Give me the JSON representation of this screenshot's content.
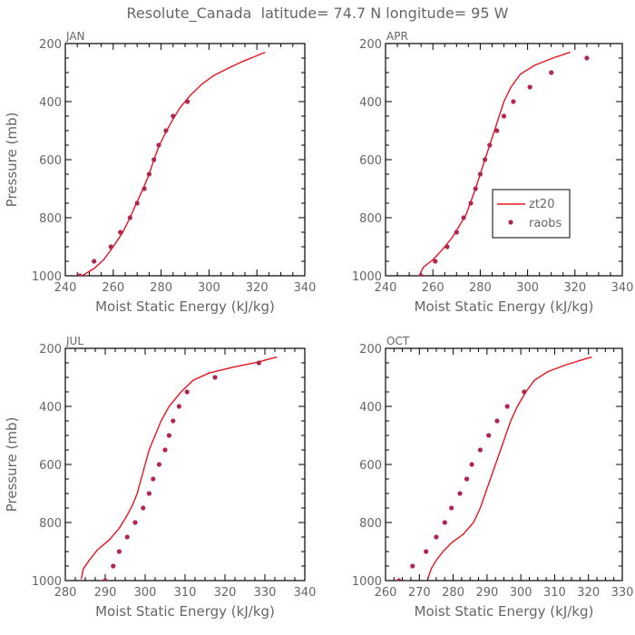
{
  "figure": {
    "title": "Resolute_Canada  latitude= 74.7 N longitude= 95 W",
    "model_color": "#e8141e",
    "obs_color": "#b0264f"
  },
  "chart_data": [
    {
      "type": "line",
      "title": "JAN",
      "xlabel": "Moist Static Energy (kJ/kg)",
      "ylabel": "Pressure (mb)",
      "xlim": [
        240,
        340
      ],
      "ylim": [
        1000,
        200
      ],
      "x_ticks": [
        240,
        260,
        280,
        300,
        320,
        340
      ],
      "y_ticks": [
        200,
        400,
        600,
        800,
        1000
      ],
      "series": [
        {
          "kind": "line",
          "points": [
            [
              244.5,
              1010
            ],
            [
              248,
              995
            ],
            [
              252,
              975
            ],
            [
              256,
              945
            ],
            [
              260,
              900
            ],
            [
              264,
              850
            ],
            [
              267,
              800
            ],
            [
              270,
              745
            ],
            [
              273,
              690
            ],
            [
              275,
              650
            ],
            [
              277,
              600
            ],
            [
              279,
              555
            ],
            [
              282,
              505
            ],
            [
              285,
              460
            ],
            [
              288,
              420
            ],
            [
              292,
              380
            ],
            [
              297,
              340
            ],
            [
              302,
              310
            ],
            [
              308,
              285
            ],
            [
              314,
              262
            ],
            [
              320,
              242
            ],
            [
              323.5,
              230
            ]
          ]
        },
        {
          "kind": "scatter",
          "points": [
            [
              246,
              1000
            ],
            [
              252,
              950
            ],
            [
              259,
              900
            ],
            [
              263,
              850
            ],
            [
              267,
              800
            ],
            [
              270,
              750
            ],
            [
              273,
              700
            ],
            [
              275,
              650
            ],
            [
              277,
              600
            ],
            [
              279,
              550
            ],
            [
              282,
              500
            ],
            [
              285,
              450
            ],
            [
              291,
              400
            ]
          ]
        }
      ]
    },
    {
      "type": "line",
      "title": "APR",
      "xlabel": "Moist Static Energy (kJ/kg)",
      "ylabel": "",
      "xlim": [
        240,
        340
      ],
      "ylim": [
        1000,
        200
      ],
      "x_ticks": [
        240,
        260,
        280,
        300,
        320,
        340
      ],
      "y_ticks": [
        200,
        400,
        600,
        800,
        1000
      ],
      "legend": {
        "position": "center-right",
        "entries": [
          "zt20",
          "raobs"
        ]
      },
      "series": [
        {
          "name": "zt20",
          "kind": "line",
          "points": [
            [
              254.5,
              995
            ],
            [
              256,
              970
            ],
            [
              260,
              945
            ],
            [
              264,
              910
            ],
            [
              268,
              870
            ],
            [
              271,
              830
            ],
            [
              274,
              790
            ],
            [
              276,
              745
            ],
            [
              278,
              700
            ],
            [
              280,
              650
            ],
            [
              282,
              600
            ],
            [
              284,
              550
            ],
            [
              286,
              500
            ],
            [
              288,
              450
            ],
            [
              290,
              400
            ],
            [
              293,
              350
            ],
            [
              297,
              305
            ],
            [
              303,
              275
            ],
            [
              310,
              252
            ],
            [
              318,
              230
            ]
          ]
        },
        {
          "name": "raobs",
          "kind": "scatter",
          "points": [
            [
              255,
              1000
            ],
            [
              261,
              950
            ],
            [
              266,
              900
            ],
            [
              270,
              850
            ],
            [
              273,
              800
            ],
            [
              276,
              750
            ],
            [
              278,
              700
            ],
            [
              280,
              650
            ],
            [
              282,
              600
            ],
            [
              284,
              550
            ],
            [
              287,
              500
            ],
            [
              290,
              450
            ],
            [
              294,
              400
            ],
            [
              301,
              350
            ],
            [
              310,
              300
            ],
            [
              325,
              250
            ]
          ]
        }
      ]
    },
    {
      "type": "line",
      "title": "JUL",
      "xlabel": "Moist Static Energy (kJ/kg)",
      "ylabel": "Pressure (mb)",
      "xlim": [
        280,
        340
      ],
      "ylim": [
        1000,
        200
      ],
      "x_ticks": [
        280,
        290,
        300,
        310,
        320,
        330,
        340
      ],
      "y_ticks": [
        200,
        400,
        600,
        800,
        1000
      ],
      "series": [
        {
          "kind": "line",
          "points": [
            [
              284,
              995
            ],
            [
              284.5,
              960
            ],
            [
              286,
              930
            ],
            [
              288,
              895
            ],
            [
              291,
              860
            ],
            [
              293.5,
              820
            ],
            [
              295.5,
              775
            ],
            [
              297,
              735
            ],
            [
              298,
              700
            ],
            [
              299,
              650
            ],
            [
              300,
              600
            ],
            [
              301,
              550
            ],
            [
              302.5,
              500
            ],
            [
              304,
              450
            ],
            [
              306,
              400
            ],
            [
              309,
              350
            ],
            [
              312,
              310
            ],
            [
              316,
              285
            ],
            [
              322,
              265
            ],
            [
              328,
              248
            ],
            [
              333,
              230
            ]
          ]
        },
        {
          "kind": "scatter",
          "points": [
            [
              290,
              1000
            ],
            [
              292,
              950
            ],
            [
              293.5,
              900
            ],
            [
              295.5,
              850
            ],
            [
              297.5,
              800
            ],
            [
              299.5,
              750
            ],
            [
              301,
              700
            ],
            [
              302,
              650
            ],
            [
              303.5,
              600
            ],
            [
              305,
              550
            ],
            [
              306,
              500
            ],
            [
              307,
              450
            ],
            [
              308.5,
              400
            ],
            [
              310.5,
              350
            ],
            [
              317.5,
              300
            ],
            [
              328.5,
              250
            ]
          ]
        }
      ]
    },
    {
      "type": "line",
      "title": "OCT",
      "xlabel": "Moist Static Energy (kJ/kg)",
      "ylabel": "",
      "xlim": [
        260,
        330
      ],
      "ylim": [
        1000,
        200
      ],
      "x_ticks": [
        260,
        270,
        280,
        290,
        300,
        310,
        320,
        330
      ],
      "y_ticks": [
        200,
        400,
        600,
        800,
        1000
      ],
      "series": [
        {
          "kind": "line",
          "points": [
            [
              272.5,
              995
            ],
            [
              273.5,
              960
            ],
            [
              275,
              930
            ],
            [
              277,
              900
            ],
            [
              279.5,
              870
            ],
            [
              283,
              840
            ],
            [
              286,
              800
            ],
            [
              288,
              750
            ],
            [
              289.5,
              700
            ],
            [
              291,
              650
            ],
            [
              292.5,
              600
            ],
            [
              294,
              550
            ],
            [
              295.5,
              500
            ],
            [
              297,
              450
            ],
            [
              299,
              400
            ],
            [
              301.5,
              350
            ],
            [
              304,
              310
            ],
            [
              308,
              280
            ],
            [
              313,
              258
            ],
            [
              318,
              240
            ],
            [
              321,
              230
            ]
          ]
        },
        {
          "kind": "scatter",
          "points": [
            [
              264,
              1000
            ],
            [
              268,
              950
            ],
            [
              272,
              900
            ],
            [
              275,
              850
            ],
            [
              277.5,
              800
            ],
            [
              279.5,
              750
            ],
            [
              282,
              700
            ],
            [
              284,
              650
            ],
            [
              285.5,
              600
            ],
            [
              288,
              550
            ],
            [
              290.5,
              500
            ],
            [
              293,
              450
            ],
            [
              296,
              400
            ],
            [
              301,
              350
            ]
          ]
        }
      ]
    }
  ]
}
